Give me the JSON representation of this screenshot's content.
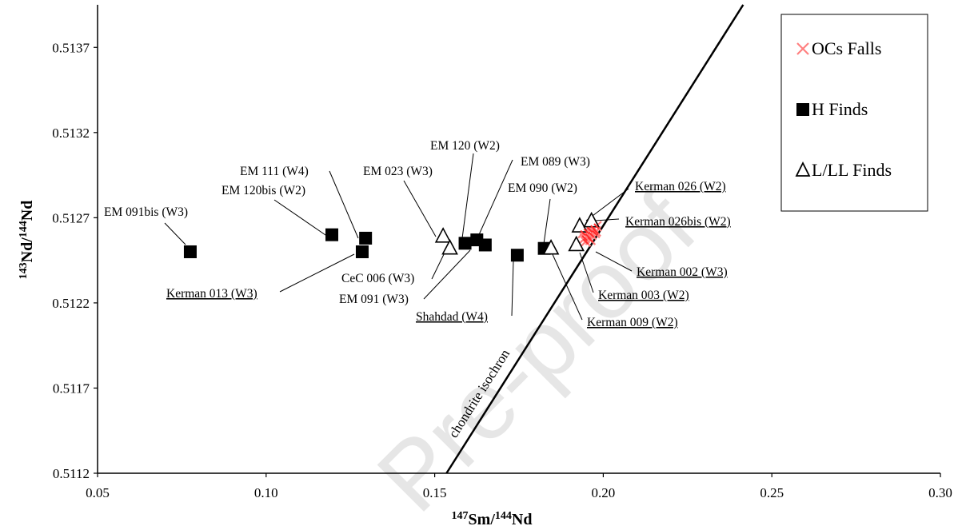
{
  "chart_data": {
    "type": "scatter",
    "x_axis": {
      "label_sup1": "147",
      "label_el1": "Sm/",
      "label_sup2": "144",
      "label_el2": "Nd",
      "range": [
        0.05,
        0.3
      ],
      "ticks": [
        0.05,
        0.1,
        0.15,
        0.2,
        0.25,
        0.3
      ],
      "tick_labels": [
        "0.05",
        "0.10",
        "0.15",
        "0.20",
        "0.25",
        "0.30"
      ]
    },
    "y_axis": {
      "label_sup1": "143",
      "label_el1": "Nd/",
      "label_sup2": "144",
      "label_el2": "Nd",
      "range": [
        0.5112,
        0.51395
      ],
      "ticks": [
        0.5112,
        0.5117,
        0.5122,
        0.5127,
        0.5132,
        0.5137
      ],
      "tick_labels": [
        "0.5112",
        "0.5117",
        "0.5122",
        "0.5127",
        "0.5132",
        "0.5137"
      ]
    },
    "grid": false,
    "legend_position": "top-right",
    "series": [
      {
        "name": "OCs Falls",
        "marker": "x",
        "color": "#ff8080",
        "points": [
          [
            0.194,
            0.51261
          ],
          [
            0.1945,
            0.51258
          ],
          [
            0.195,
            0.51262
          ],
          [
            0.1955,
            0.51259
          ],
          [
            0.196,
            0.51263
          ],
          [
            0.1965,
            0.5126
          ],
          [
            0.197,
            0.51264
          ],
          [
            0.1975,
            0.51261
          ],
          [
            0.198,
            0.51265
          ],
          [
            0.1948,
            0.51256
          ],
          [
            0.1962,
            0.51257
          ],
          [
            0.1978,
            0.51262
          ]
        ]
      },
      {
        "name": "H Finds",
        "marker": "square",
        "color": "#000000",
        "points": [
          [
            0.0775,
            0.5125
          ],
          [
            0.1195,
            0.5126
          ],
          [
            0.1285,
            0.5125
          ],
          [
            0.1295,
            0.51258
          ],
          [
            0.159,
            0.51255
          ],
          [
            0.1625,
            0.51257
          ],
          [
            0.165,
            0.51254
          ],
          [
            0.1745,
            0.51248
          ],
          [
            0.1825,
            0.51252
          ]
        ]
      },
      {
        "name": "L/LL Finds",
        "marker": "triangle",
        "color": "#000000",
        "points": [
          [
            0.1525,
            0.51259
          ],
          [
            0.1545,
            0.51252
          ],
          [
            0.1845,
            0.51252
          ],
          [
            0.192,
            0.51254
          ],
          [
            0.193,
            0.51265
          ],
          [
            0.1965,
            0.51268
          ]
        ]
      }
    ],
    "isochron": {
      "label": "chondrite isochron",
      "x": [
        0.1535,
        0.2415
      ],
      "y": [
        0.5112,
        0.51395
      ]
    },
    "annotations": [
      {
        "text": "EM 091bis (W3)",
        "underline": false,
        "x": 0.0775,
        "y": 0.5125
      },
      {
        "text": "EM 111 (W4)",
        "underline": false,
        "x": 0.1295,
        "y": 0.51258
      },
      {
        "text": "EM 120bis (W2)",
        "underline": false,
        "x": 0.1195,
        "y": 0.5126
      },
      {
        "text": "Kerman 013 (W3)",
        "underline": true,
        "x": 0.1285,
        "y": 0.5125
      },
      {
        "text": "EM 023 (W3)",
        "underline": false,
        "x": 0.1525,
        "y": 0.51259
      },
      {
        "text": "CeC 006 (W3)",
        "underline": false,
        "x": 0.1545,
        "y": 0.51252
      },
      {
        "text": "EM 091 (W3)",
        "underline": false,
        "x": 0.1625,
        "y": 0.51257
      },
      {
        "text": "EM 120 (W2)",
        "underline": false,
        "x": 0.159,
        "y": 0.51255
      },
      {
        "text": "EM 089 (W3)",
        "underline": false,
        "x": 0.165,
        "y": 0.51254
      },
      {
        "text": "EM 090 (W2)",
        "underline": false,
        "x": 0.1825,
        "y": 0.51252
      },
      {
        "text": "Shahdad (W4)",
        "underline": true,
        "x": 0.1745,
        "y": 0.51248
      },
      {
        "text": "Kerman 026 (W2)",
        "underline": true,
        "x": 0.193,
        "y": 0.51265
      },
      {
        "text": "Kerman 026bis (W2)",
        "underline": true,
        "x": 0.1965,
        "y": 0.51268
      },
      {
        "text": "Kerman 002 (W3)",
        "underline": true,
        "x": 0.196,
        "y": 0.5126
      },
      {
        "text": "Kerman 003 (W2)",
        "underline": true,
        "x": 0.192,
        "y": 0.51254
      },
      {
        "text": "Kerman 009 (W2)",
        "underline": true,
        "x": 0.1845,
        "y": 0.51252
      }
    ],
    "watermark": "Pre-proof"
  }
}
